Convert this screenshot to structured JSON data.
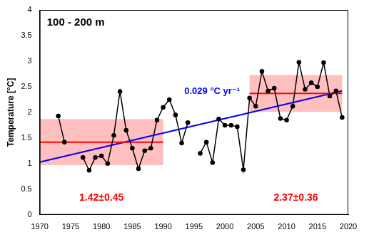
{
  "chart_data": {
    "type": "line",
    "title": "100 - 200 m",
    "y_label": "Temperature [°C]",
    "x": [
      1973,
      1974,
      1975,
      1976,
      1977,
      1978,
      1979,
      1980,
      1981,
      1982,
      1983,
      1984,
      1985,
      1986,
      1987,
      1988,
      1989,
      1990,
      1991,
      1992,
      1993,
      1994,
      1995,
      1996,
      1997,
      1998,
      1999,
      2000,
      2001,
      2002,
      2003,
      2004,
      2005,
      2006,
      2007,
      2008,
      2009,
      2010,
      2011,
      2012,
      2013,
      2014,
      2015,
      2016,
      2017,
      2018,
      2019
    ],
    "series": [
      {
        "color": "#000000",
        "marker": "circle",
        "line_style": "solid",
        "values": [
          1.93,
          1.42,
          null,
          null,
          1.12,
          0.87,
          1.12,
          1.15,
          1.0,
          1.55,
          2.41,
          1.65,
          1.3,
          0.9,
          1.25,
          1.3,
          1.85,
          2.1,
          2.25,
          1.95,
          1.4,
          1.8,
          null,
          1.2,
          1.42,
          1.02,
          1.87,
          1.75,
          1.75,
          1.72,
          0.88,
          2.28,
          2.12,
          2.8,
          2.42,
          2.47,
          1.88,
          1.85,
          2.12,
          2.98,
          2.45,
          2.58,
          2.5,
          2.97,
          2.32,
          2.42,
          1.9
        ]
      }
    ],
    "trend": {
      "x": [
        1970,
        2019
      ],
      "values": [
        1.03,
        2.42
      ],
      "color": "#0000ff",
      "label": "0.029 °C yr⁻¹"
    },
    "periods": [
      {
        "x": [
          1970,
          1990
        ],
        "mean": 1.42,
        "std": 0.45,
        "label": "1.42±0.45",
        "color": "#ff0000"
      },
      {
        "x": [
          2004,
          2019
        ],
        "mean": 2.37,
        "std": 0.36,
        "label": "2.37±0.36",
        "color": "#ff0000"
      }
    ],
    "xlim": [
      1970,
      2020
    ],
    "xticks": [
      1970,
      1975,
      1980,
      1985,
      1990,
      1995,
      2000,
      2005,
      2010,
      2015,
      2020
    ],
    "ylim": [
      0,
      4
    ],
    "yticks": [
      0,
      0.5,
      1,
      1.5,
      2,
      2.5,
      3,
      3.5,
      4
    ],
    "grid": false
  }
}
